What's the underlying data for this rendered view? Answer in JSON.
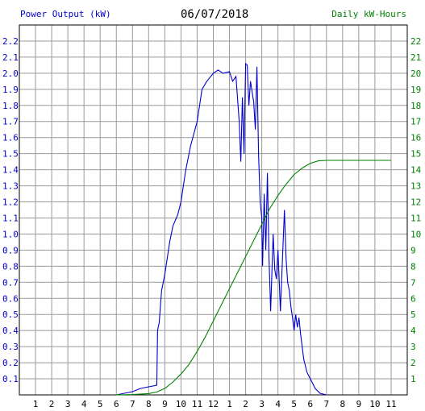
{
  "header": {
    "left_label": "Power Output (kW)",
    "date": "06/07/2018",
    "right_label": "Daily kW-Hours"
  },
  "colors": {
    "power": "#0000cc",
    "energy": "#008000",
    "grid": "#999999",
    "axis_text_left": "#0000cc",
    "axis_text_right": "#008000"
  },
  "chart_data": {
    "type": "line",
    "title": "06/07/2018",
    "grid": true,
    "x_ticks": [
      "1",
      "2",
      "3",
      "4",
      "5",
      "6",
      "7",
      "8",
      "9",
      "10",
      "11",
      "12",
      "1",
      "2",
      "3",
      "4",
      "5",
      "6",
      "7",
      "8",
      "9",
      "10",
      "11"
    ],
    "x_range": [
      0,
      24
    ],
    "y_left": {
      "label": "Power Output (kW)",
      "range": [
        0,
        2.3
      ],
      "ticks": [
        "0.1",
        "0.2",
        "0.3",
        "0.4",
        "0.5",
        "0.6",
        "0.7",
        "0.8",
        "0.9",
        "1.0",
        "1.1",
        "1.2",
        "1.3",
        "1.4",
        "1.5",
        "1.6",
        "1.7",
        "1.8",
        "1.9",
        "2.0",
        "2.1",
        "2.2"
      ]
    },
    "y_right": {
      "label": "Daily kW-Hours",
      "range": [
        0,
        23
      ],
      "ticks": [
        "1",
        "2",
        "3",
        "4",
        "5",
        "6",
        "7",
        "8",
        "9",
        "10",
        "11",
        "12",
        "13",
        "14",
        "15",
        "16",
        "17",
        "18",
        "19",
        "20",
        "21",
        "22"
      ]
    },
    "series": [
      {
        "name": "Power Output (kW)",
        "axis": "left",
        "points": [
          [
            6.0,
            0.0
          ],
          [
            6.5,
            0.01
          ],
          [
            7.0,
            0.02
          ],
          [
            7.5,
            0.04
          ],
          [
            8.0,
            0.05
          ],
          [
            8.5,
            0.06
          ],
          [
            8.55,
            0.4
          ],
          [
            8.65,
            0.45
          ],
          [
            8.8,
            0.65
          ],
          [
            9.0,
            0.75
          ],
          [
            9.3,
            0.95
          ],
          [
            9.5,
            1.05
          ],
          [
            9.8,
            1.12
          ],
          [
            10.0,
            1.2
          ],
          [
            10.3,
            1.4
          ],
          [
            10.6,
            1.55
          ],
          [
            11.0,
            1.7
          ],
          [
            11.3,
            1.9
          ],
          [
            11.6,
            1.95
          ],
          [
            12.0,
            2.0
          ],
          [
            12.3,
            2.02
          ],
          [
            12.6,
            2.0
          ],
          [
            13.0,
            2.01
          ],
          [
            13.2,
            1.95
          ],
          [
            13.4,
            1.98
          ],
          [
            13.6,
            1.7
          ],
          [
            13.7,
            1.45
          ],
          [
            13.8,
            1.85
          ],
          [
            13.9,
            1.5
          ],
          [
            14.0,
            2.06
          ],
          [
            14.1,
            2.05
          ],
          [
            14.2,
            1.8
          ],
          [
            14.3,
            1.95
          ],
          [
            14.5,
            1.82
          ],
          [
            14.6,
            1.65
          ],
          [
            14.7,
            2.04
          ],
          [
            14.8,
            1.5
          ],
          [
            14.9,
            1.2
          ],
          [
            15.0,
            1.1
          ],
          [
            15.05,
            0.8
          ],
          [
            15.15,
            1.25
          ],
          [
            15.25,
            0.9
          ],
          [
            15.35,
            1.38
          ],
          [
            15.45,
            0.85
          ],
          [
            15.55,
            0.52
          ],
          [
            15.7,
            1.0
          ],
          [
            15.8,
            0.78
          ],
          [
            15.9,
            0.72
          ],
          [
            16.0,
            0.9
          ],
          [
            16.1,
            0.65
          ],
          [
            16.15,
            0.52
          ],
          [
            16.3,
            0.9
          ],
          [
            16.4,
            1.15
          ],
          [
            16.5,
            0.85
          ],
          [
            16.6,
            0.7
          ],
          [
            16.7,
            0.65
          ],
          [
            16.8,
            0.55
          ],
          [
            16.9,
            0.48
          ],
          [
            17.0,
            0.4
          ],
          [
            17.1,
            0.5
          ],
          [
            17.2,
            0.42
          ],
          [
            17.3,
            0.48
          ],
          [
            17.4,
            0.38
          ],
          [
            17.6,
            0.22
          ],
          [
            17.8,
            0.14
          ],
          [
            18.0,
            0.1
          ],
          [
            18.3,
            0.04
          ],
          [
            18.6,
            0.01
          ],
          [
            19.0,
            0.0
          ]
        ]
      },
      {
        "name": "Daily kW-Hours",
        "axis": "right",
        "points": [
          [
            6.0,
            0.0
          ],
          [
            7.0,
            0.02
          ],
          [
            8.0,
            0.08
          ],
          [
            8.5,
            0.18
          ],
          [
            9.0,
            0.4
          ],
          [
            9.5,
            0.8
          ],
          [
            10.0,
            1.3
          ],
          [
            10.5,
            1.9
          ],
          [
            11.0,
            2.7
          ],
          [
            11.5,
            3.6
          ],
          [
            12.0,
            4.6
          ],
          [
            12.5,
            5.6
          ],
          [
            13.0,
            6.6
          ],
          [
            13.5,
            7.6
          ],
          [
            14.0,
            8.6
          ],
          [
            14.5,
            9.6
          ],
          [
            15.0,
            10.6
          ],
          [
            15.5,
            11.6
          ],
          [
            16.0,
            12.4
          ],
          [
            16.5,
            13.1
          ],
          [
            17.0,
            13.7
          ],
          [
            17.5,
            14.1
          ],
          [
            18.0,
            14.4
          ],
          [
            18.5,
            14.55
          ],
          [
            19.0,
            14.58
          ],
          [
            20.0,
            14.58
          ],
          [
            21.0,
            14.58
          ],
          [
            22.0,
            14.58
          ],
          [
            23.0,
            14.58
          ]
        ]
      }
    ]
  }
}
